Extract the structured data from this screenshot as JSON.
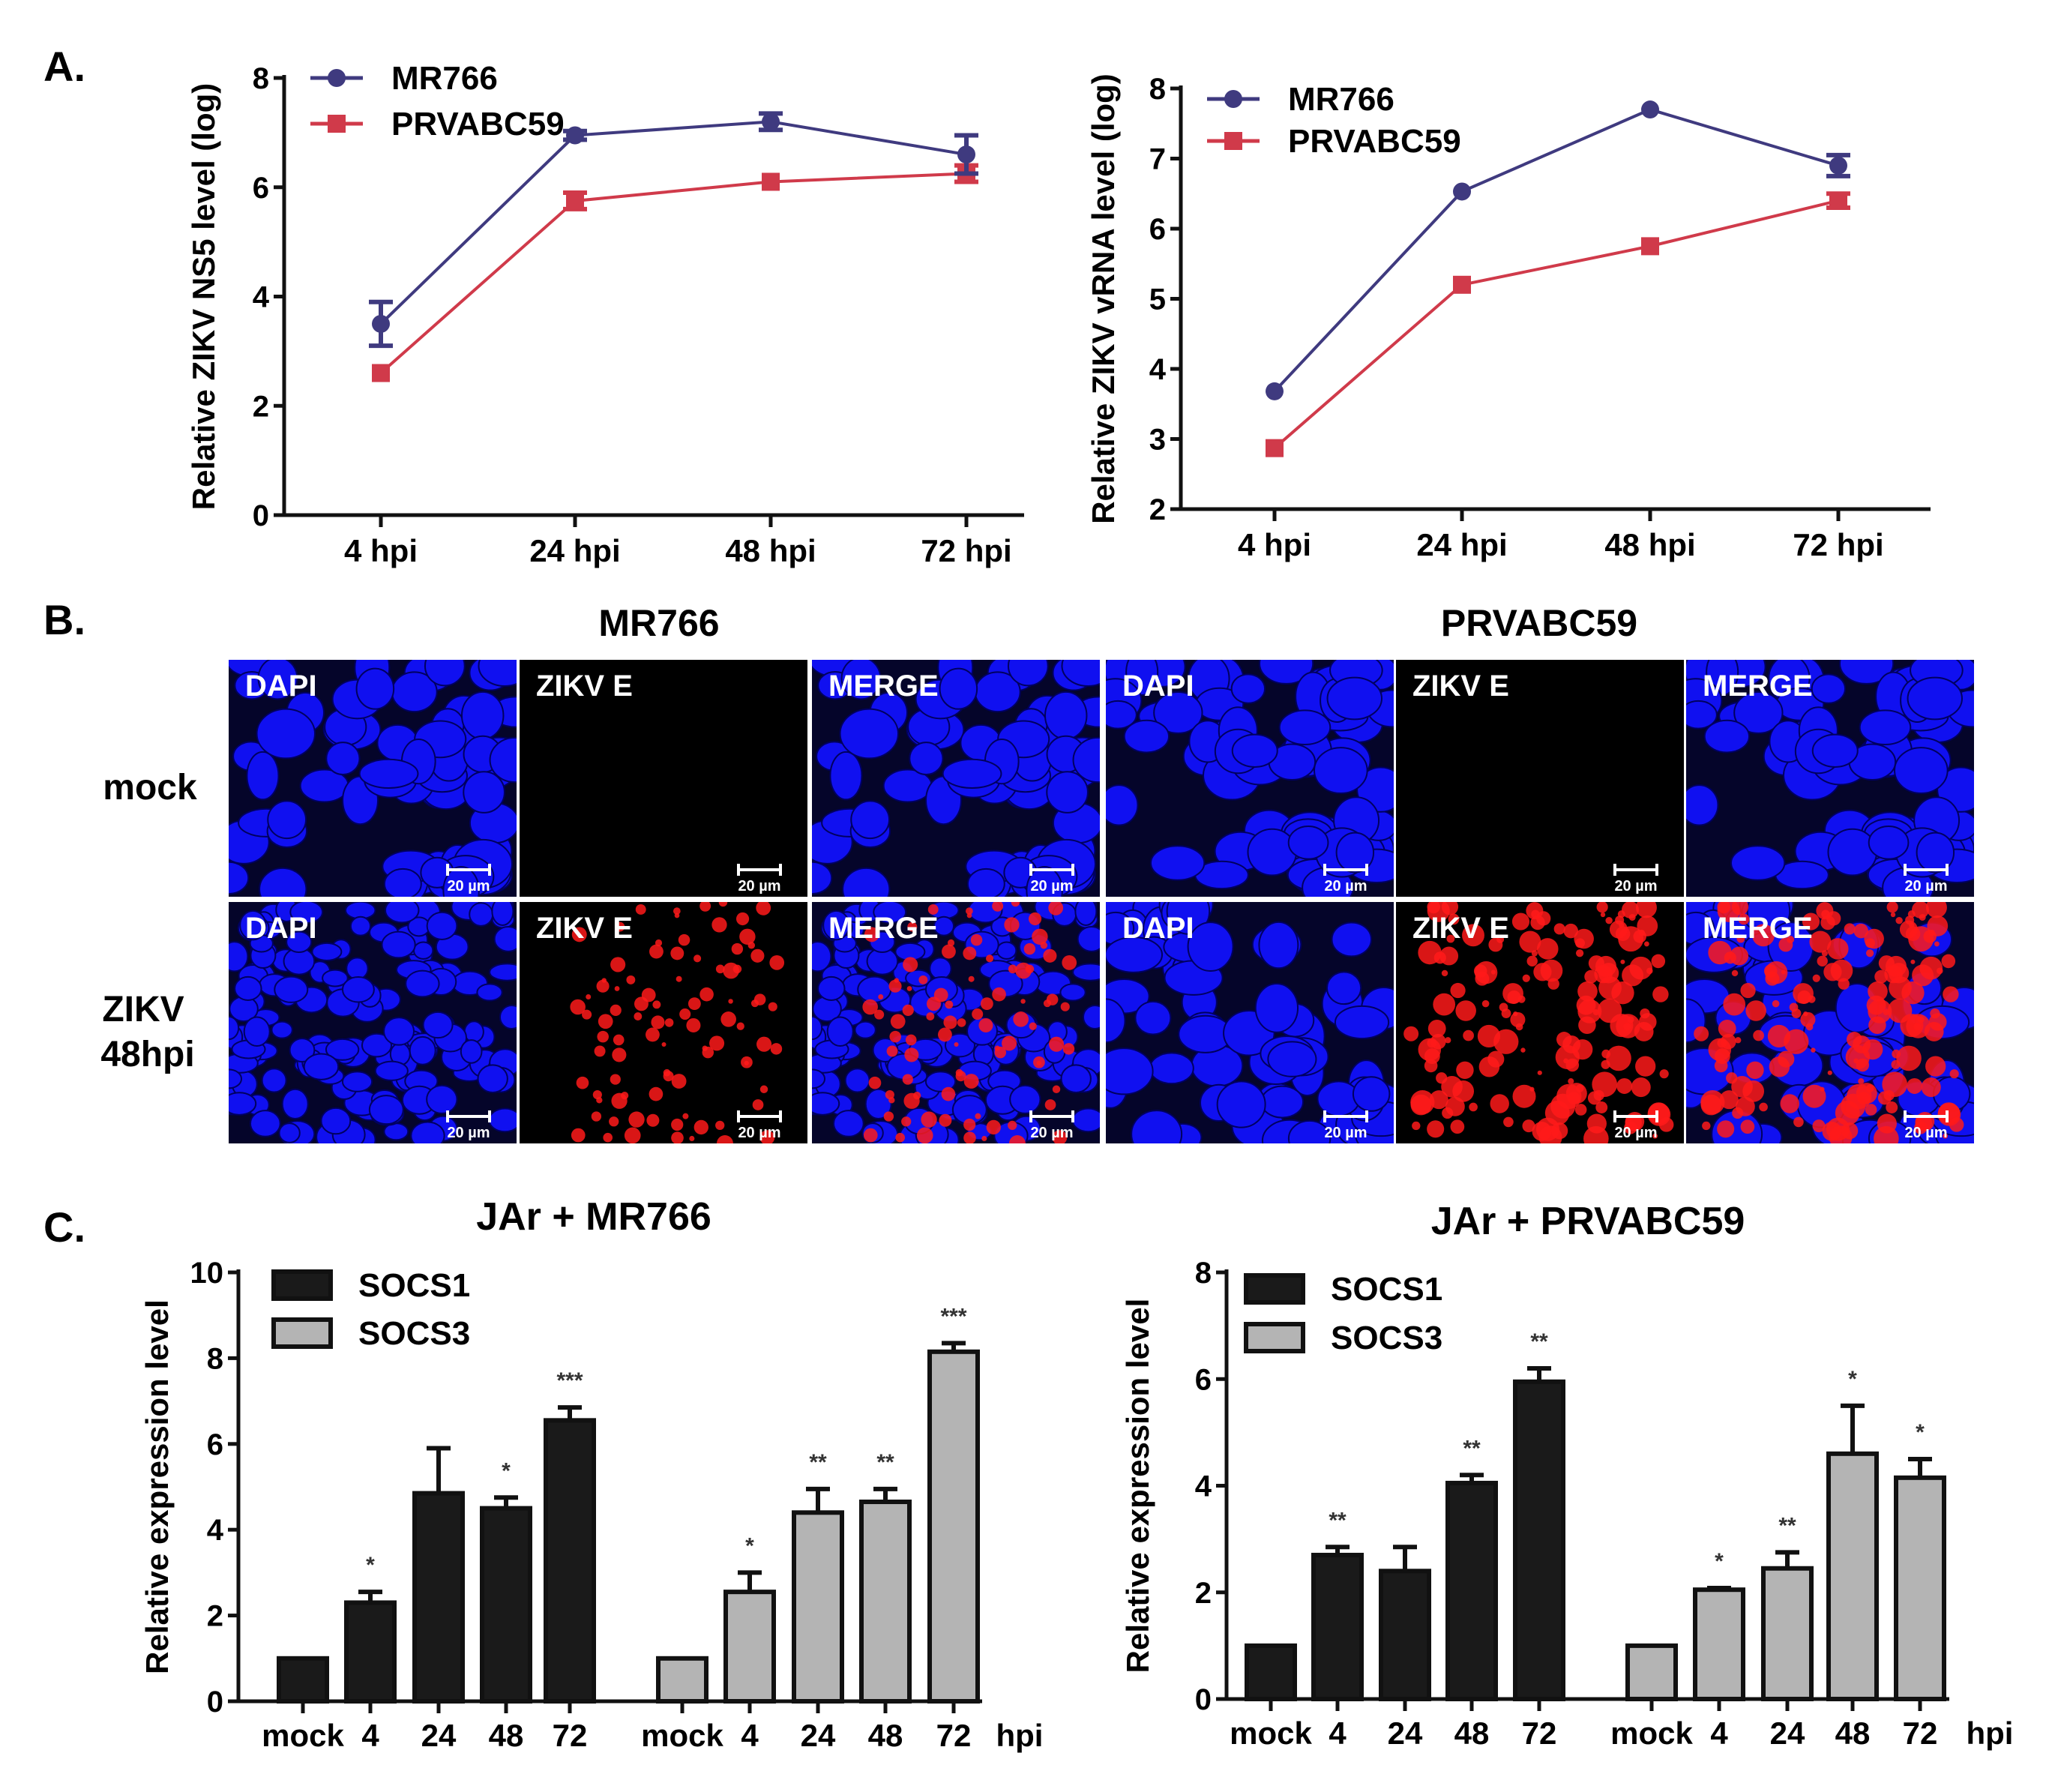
{
  "panel_labels": {
    "a": "A.",
    "b": "B.",
    "c": "C."
  },
  "chart_data": [
    {
      "type": "line",
      "panel": "A",
      "ylabel": "Relative ZIKV NS5 level (log)",
      "ylim": [
        0,
        8
      ],
      "yticks": [
        "0",
        "2",
        "4",
        "6",
        "8"
      ],
      "categories": [
        "4 hpi",
        "24 hpi",
        "48 hpi",
        "72 hpi"
      ],
      "legend_placement": "top-left",
      "series": [
        {
          "name": "MR766",
          "color": "#3f3a7f",
          "marker": "circle",
          "values": [
            3.5,
            6.95,
            7.2,
            6.6
          ],
          "errors": [
            0.4,
            0.08,
            0.15,
            0.35
          ]
        },
        {
          "name": "PRVABC59",
          "color": "#d03a4a",
          "marker": "square",
          "values": [
            2.6,
            5.75,
            6.1,
            6.25
          ],
          "errors": [
            0.05,
            0.15,
            0.05,
            0.15
          ]
        }
      ]
    },
    {
      "type": "line",
      "panel": "A",
      "ylabel": "Relative ZIKV vRNA level (log)",
      "ylim": [
        2,
        8
      ],
      "yticks": [
        "2",
        "3",
        "4",
        "5",
        "6",
        "7",
        "8"
      ],
      "categories": [
        "4 hpi",
        "24 hpi",
        "48 hpi",
        "72 hpi"
      ],
      "legend_placement": "top-left",
      "series": [
        {
          "name": "MR766",
          "color": "#3f3a7f",
          "marker": "circle",
          "values": [
            3.68,
            6.53,
            7.7,
            6.9
          ],
          "errors": [
            0.03,
            0.03,
            0.03,
            0.15
          ]
        },
        {
          "name": "PRVABC59",
          "color": "#d03a4a",
          "marker": "square",
          "values": [
            2.87,
            5.2,
            5.75,
            6.4
          ],
          "errors": [
            0.03,
            0.03,
            0.03,
            0.1
          ]
        }
      ]
    },
    {
      "type": "bar",
      "panel": "C",
      "title": "JAr + MR766",
      "ylabel": "Relative expression level",
      "ylim": [
        0,
        10
      ],
      "yticks": [
        "0",
        "2",
        "4",
        "6",
        "8",
        "10"
      ],
      "categories": [
        "mock",
        "4",
        "24",
        "48",
        "72"
      ],
      "x_unit": "hpi",
      "legend_placement": "top-left",
      "series": [
        {
          "name": "SOCS1",
          "color": "#1a1a1a",
          "values": [
            1,
            2.3,
            4.85,
            4.5,
            6.55
          ],
          "errors": [
            0,
            0.25,
            1.05,
            0.25,
            0.3
          ],
          "significance": [
            "",
            "*",
            "",
            "*",
            "***"
          ]
        },
        {
          "name": "SOCS3",
          "color": "#b4b4b4",
          "values": [
            1,
            2.55,
            4.4,
            4.65,
            8.15
          ],
          "errors": [
            0,
            0.45,
            0.55,
            0.3,
            0.2
          ],
          "significance": [
            "",
            "*",
            "**",
            "**",
            "***"
          ]
        }
      ]
    },
    {
      "type": "bar",
      "panel": "C",
      "title": "JAr + PRVABC59",
      "ylabel": "Relative expression level",
      "ylim": [
        0,
        8
      ],
      "yticks": [
        "0",
        "2",
        "4",
        "6",
        "8"
      ],
      "categories": [
        "mock",
        "4",
        "24",
        "48",
        "72"
      ],
      "x_unit": "hpi",
      "legend_placement": "top-left",
      "series": [
        {
          "name": "SOCS1",
          "color": "#1a1a1a",
          "values": [
            1,
            2.7,
            2.4,
            4.05,
            5.95
          ],
          "errors": [
            0,
            0.15,
            0.45,
            0.15,
            0.25
          ],
          "significance": [
            "",
            "**",
            "",
            "**",
            "**"
          ]
        },
        {
          "name": "SOCS3",
          "color": "#b4b4b4",
          "values": [
            1,
            2.05,
            2.45,
            4.6,
            4.15
          ],
          "errors": [
            0,
            0.03,
            0.3,
            0.9,
            0.35
          ],
          "significance": [
            "",
            "*",
            "**",
            "*",
            "*"
          ]
        }
      ]
    }
  ],
  "microscopy": {
    "groups": [
      "MR766",
      "PRVABC59"
    ],
    "rows": [
      [
        "mock"
      ],
      [
        "ZIKV",
        "48hpi"
      ]
    ],
    "channels": [
      "DAPI",
      "ZIKV E",
      "MERGE"
    ],
    "scale_bar": "20 µm",
    "colors": {
      "dapi": "#1010f0",
      "zikv": "#ff1a1a"
    }
  }
}
